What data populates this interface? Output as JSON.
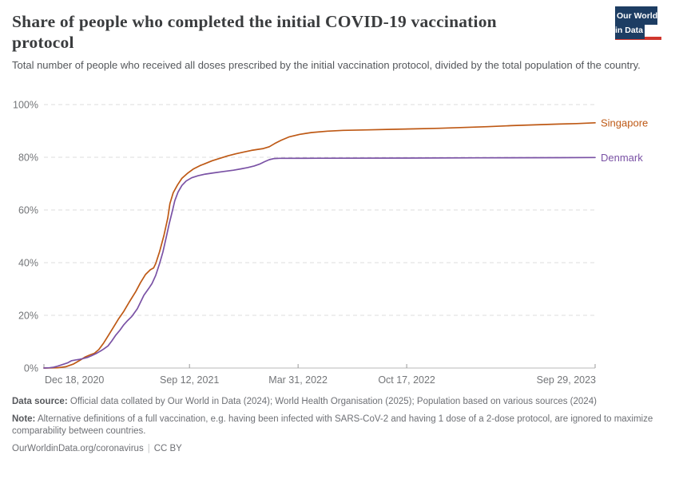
{
  "header": {
    "title": "Share of people who completed the initial COVID-19 vaccination protocol",
    "subtitle": "Total number of people who received all doses prescribed by the initial vaccination protocol, divided by the total population of the country."
  },
  "logo": {
    "line1": "Our World",
    "line2": "in Data",
    "bg_color": "#1D3D63",
    "accent_color": "#D0362D"
  },
  "chart_data": {
    "type": "line",
    "title": "Share of people who completed the initial COVID-19 vaccination protocol",
    "xlabel": "",
    "ylabel": "",
    "grid": "horizontal-dashed",
    "legend_position": "right-of-line-labels",
    "x_axis": {
      "unit": "days since Dec 18, 2020",
      "range_days": [
        0,
        1015
      ],
      "ticks": [
        {
          "day": 0,
          "label": "Dec 18, 2020",
          "align": "start"
        },
        {
          "day": 268,
          "label": "Sep 12, 2021",
          "align": "middle"
        },
        {
          "day": 468,
          "label": "Mar 31, 2022",
          "align": "middle"
        },
        {
          "day": 668,
          "label": "Oct 17, 2022",
          "align": "middle"
        },
        {
          "day": 1015,
          "label": "Sep 29, 2023",
          "align": "end"
        }
      ]
    },
    "y_axis": {
      "range": [
        0,
        100
      ],
      "ticks": [
        0,
        20,
        40,
        60,
        80,
        100
      ],
      "suffix": "%"
    },
    "series": [
      {
        "name": "Singapore",
        "color": "#BE5915",
        "points": [
          [
            0,
            0
          ],
          [
            25,
            0.1
          ],
          [
            40,
            0.5
          ],
          [
            54,
            1.5
          ],
          [
            66,
            2.9
          ],
          [
            76,
            4.2
          ],
          [
            85,
            5.0
          ],
          [
            93,
            5.6
          ],
          [
            101,
            7.0
          ],
          [
            110,
            9.5
          ],
          [
            119,
            12.5
          ],
          [
            128,
            15.5
          ],
          [
            137,
            18.5
          ],
          [
            147,
            21.5
          ],
          [
            157,
            25.0
          ],
          [
            169,
            29.0
          ],
          [
            178,
            32.5
          ],
          [
            187,
            35.5
          ],
          [
            196,
            37.3
          ],
          [
            202,
            38.0
          ],
          [
            206,
            39.7
          ],
          [
            213,
            44.2
          ],
          [
            221,
            50.3
          ],
          [
            228,
            56.9
          ],
          [
            232,
            62.4
          ],
          [
            238,
            66.5
          ],
          [
            246,
            69.5
          ],
          [
            254,
            72.0
          ],
          [
            265,
            74.0
          ],
          [
            275,
            75.5
          ],
          [
            287,
            76.8
          ],
          [
            299,
            77.8
          ],
          [
            310,
            78.7
          ],
          [
            324,
            79.6
          ],
          [
            338,
            80.5
          ],
          [
            353,
            81.3
          ],
          [
            368,
            82.0
          ],
          [
            382,
            82.6
          ],
          [
            394,
            83.0
          ],
          [
            404,
            83.3
          ],
          [
            415,
            84.0
          ],
          [
            425,
            85.2
          ],
          [
            437,
            86.5
          ],
          [
            451,
            87.7
          ],
          [
            471,
            88.7
          ],
          [
            493,
            89.4
          ],
          [
            522,
            89.9
          ],
          [
            551,
            90.2
          ],
          [
            596,
            90.4
          ],
          [
            640,
            90.6
          ],
          [
            684,
            90.8
          ],
          [
            728,
            91.0
          ],
          [
            772,
            91.3
          ],
          [
            816,
            91.6
          ],
          [
            860,
            92.0
          ],
          [
            904,
            92.3
          ],
          [
            949,
            92.6
          ],
          [
            981,
            92.8
          ],
          [
            1015,
            93.1
          ]
        ],
        "end_value_pct": 93.1
      },
      {
        "name": "Denmark",
        "color": "#7A52A5",
        "points": [
          [
            0,
            0
          ],
          [
            10,
            0.1
          ],
          [
            18,
            0.3
          ],
          [
            25,
            0.7
          ],
          [
            34,
            1.3
          ],
          [
            44,
            2.0
          ],
          [
            51,
            2.8
          ],
          [
            59,
            3.1
          ],
          [
            66,
            3.3
          ],
          [
            74,
            3.7
          ],
          [
            81,
            4.1
          ],
          [
            88,
            4.7
          ],
          [
            96,
            5.5
          ],
          [
            103,
            6.3
          ],
          [
            110,
            7.2
          ],
          [
            118,
            8.4
          ],
          [
            125,
            10.3
          ],
          [
            132,
            12.4
          ],
          [
            140,
            14.4
          ],
          [
            147,
            16.4
          ],
          [
            154,
            18.0
          ],
          [
            162,
            19.6
          ],
          [
            172,
            22.5
          ],
          [
            184,
            27.6
          ],
          [
            193,
            30.2
          ],
          [
            199,
            32.1
          ],
          [
            206,
            35.2
          ],
          [
            213,
            39.7
          ],
          [
            219,
            44.0
          ],
          [
            225,
            49.5
          ],
          [
            231,
            55.0
          ],
          [
            237,
            60.0
          ],
          [
            241,
            63.5
          ],
          [
            247,
            66.8
          ],
          [
            254,
            69.3
          ],
          [
            262,
            71.0
          ],
          [
            272,
            72.2
          ],
          [
            284,
            73.0
          ],
          [
            297,
            73.6
          ],
          [
            313,
            74.1
          ],
          [
            331,
            74.6
          ],
          [
            349,
            75.1
          ],
          [
            363,
            75.6
          ],
          [
            375,
            76.1
          ],
          [
            387,
            76.7
          ],
          [
            397,
            77.4
          ],
          [
            406,
            78.3
          ],
          [
            415,
            79.1
          ],
          [
            424,
            79.5
          ],
          [
            434,
            79.6
          ],
          [
            507,
            79.65
          ],
          [
            654,
            79.7
          ],
          [
            801,
            79.8
          ],
          [
            949,
            79.85
          ],
          [
            1015,
            79.9
          ]
        ],
        "end_value_pct": 79.9
      }
    ],
    "style": {
      "gridline_color": "#dcdcdc",
      "axis_line_color": "#b8b8b8",
      "tick_color": "#999999",
      "tick_label_color": "#737578",
      "line_width": 1.7
    }
  },
  "footer": {
    "data_source_label": "Data source:",
    "data_source_text": "Official data collated by Our World in Data (2024); World Health Organisation (2025); Population based on various sources (2024)",
    "note_label": "Note:",
    "note_text": "Alternative definitions of a full vaccination, e.g. having been infected with SARS-CoV-2 and having 1 dose of a 2-dose protocol, are ignored to maximize comparability between countries.",
    "url": "OurWorldinData.org/coronavirus",
    "license": "CC BY"
  }
}
